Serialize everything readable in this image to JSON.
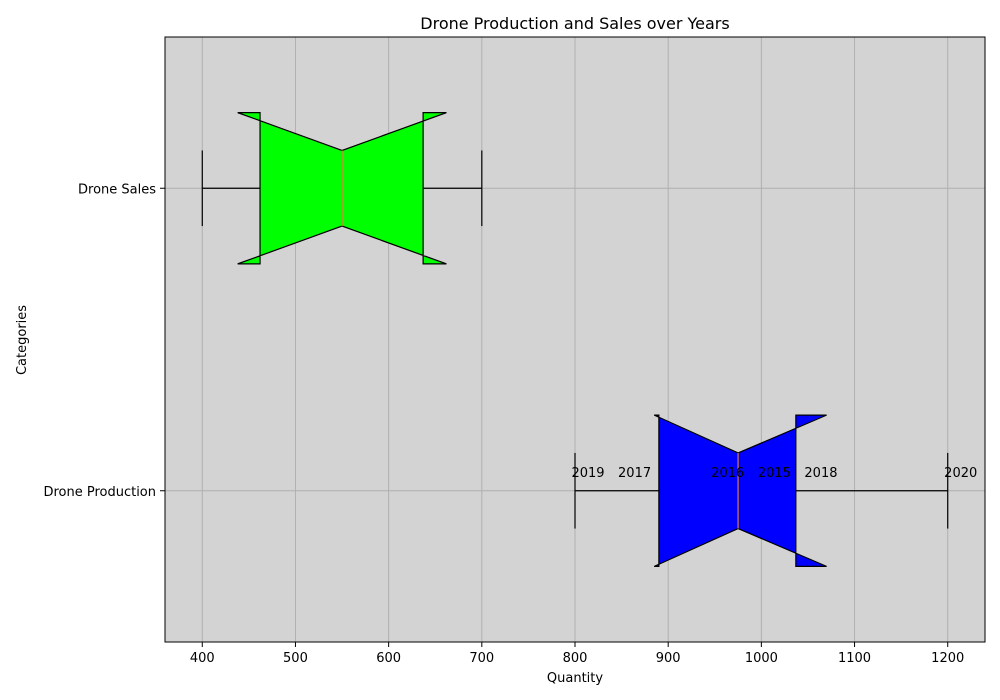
{
  "chart_data": {
    "type": "boxplot",
    "orientation": "horizontal",
    "notched": true,
    "title": "Drone Production and Sales over Years",
    "xlabel": "Quantity",
    "ylabel": "Categories",
    "xlim": [
      360,
      1240
    ],
    "xticks": [
      400,
      500,
      600,
      700,
      800,
      900,
      1000,
      1100,
      1200
    ],
    "grid": true,
    "background": "#d3d3d3",
    "categories": [
      "Drone Production",
      "Drone Sales"
    ],
    "series": [
      {
        "category": "Drone Production",
        "color": "#0000ff",
        "min": 800,
        "q1": 890,
        "median": 975,
        "q3": 1037,
        "max": 1200,
        "notch_low": 885,
        "notch_high": 1070,
        "point_labels": [
          {
            "label": "2019",
            "value": 800
          },
          {
            "label": "2017",
            "value": 850
          },
          {
            "label": "2016",
            "value": 950
          },
          {
            "label": "2015",
            "value": 1000
          },
          {
            "label": "2018",
            "value": 1050
          },
          {
            "label": "2020",
            "value": 1200
          }
        ]
      },
      {
        "category": "Drone Sales",
        "color": "#00ff00",
        "min": 400,
        "q1": 462,
        "median": 550,
        "q3": 637,
        "max": 700,
        "notch_low": 438,
        "notch_high": 662,
        "point_labels": []
      }
    ]
  }
}
